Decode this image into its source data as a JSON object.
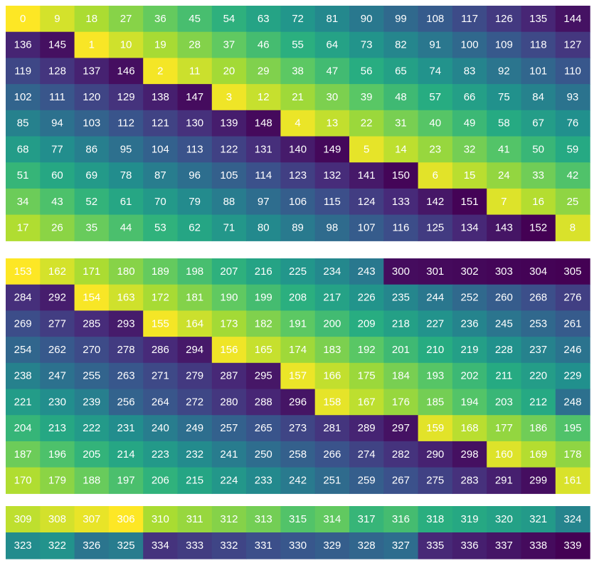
{
  "chart_data": [
    {
      "type": "heatmap",
      "title": "",
      "xlabel": "",
      "ylabel": "",
      "colormap": "viridis",
      "grid": false,
      "legend": "none",
      "values": [
        [
          0,
          9,
          18,
          27,
          36,
          45,
          54,
          63,
          72,
          81,
          90,
          99,
          108,
          117,
          126,
          135,
          144
        ],
        [
          136,
          145,
          1,
          10,
          19,
          28,
          37,
          46,
          55,
          64,
          73,
          82,
          91,
          100,
          109,
          118,
          127
        ],
        [
          119,
          128,
          137,
          146,
          2,
          11,
          20,
          29,
          38,
          47,
          56,
          65,
          74,
          83,
          92,
          101,
          110
        ],
        [
          102,
          111,
          120,
          129,
          138,
          147,
          3,
          12,
          21,
          30,
          39,
          48,
          57,
          66,
          75,
          84,
          93
        ],
        [
          85,
          94,
          103,
          112,
          121,
          130,
          139,
          148,
          4,
          13,
          22,
          31,
          40,
          49,
          58,
          67,
          76
        ],
        [
          68,
          77,
          86,
          95,
          104,
          113,
          122,
          131,
          140,
          149,
          5,
          14,
          23,
          32,
          41,
          50,
          59
        ],
        [
          51,
          60,
          69,
          78,
          87,
          96,
          105,
          114,
          123,
          132,
          141,
          150,
          6,
          15,
          24,
          33,
          42
        ],
        [
          34,
          43,
          52,
          61,
          70,
          79,
          88,
          97,
          106,
          115,
          124,
          133,
          142,
          151,
          7,
          16,
          25
        ],
        [
          17,
          26,
          35,
          44,
          53,
          62,
          71,
          80,
          89,
          98,
          107,
          116,
          125,
          134,
          143,
          152,
          8
        ]
      ]
    },
    {
      "type": "heatmap",
      "title": "",
      "xlabel": "",
      "ylabel": "",
      "colormap": "viridis",
      "grid": false,
      "legend": "none",
      "values": [
        [
          153,
          162,
          171,
          180,
          189,
          198,
          207,
          216,
          225,
          234,
          243,
          300,
          301,
          302,
          303,
          304,
          305
        ],
        [
          284,
          292,
          154,
          163,
          172,
          181,
          190,
          199,
          208,
          217,
          226,
          235,
          244,
          252,
          260,
          268,
          276
        ],
        [
          269,
          277,
          285,
          293,
          155,
          164,
          173,
          182,
          191,
          200,
          209,
          218,
          227,
          236,
          245,
          253,
          261
        ],
        [
          254,
          262,
          270,
          278,
          286,
          294,
          156,
          165,
          174,
          183,
          192,
          201,
          210,
          219,
          228,
          237,
          246
        ],
        [
          238,
          247,
          255,
          263,
          271,
          279,
          287,
          295,
          157,
          166,
          175,
          184,
          193,
          202,
          211,
          220,
          229
        ],
        [
          221,
          230,
          239,
          256,
          264,
          272,
          280,
          288,
          296,
          158,
          167,
          176,
          185,
          194,
          203,
          212,
          248
        ],
        [
          204,
          213,
          222,
          231,
          240,
          249,
          257,
          265,
          273,
          281,
          289,
          297,
          159,
          168,
          177,
          186,
          195
        ],
        [
          187,
          196,
          205,
          214,
          223,
          232,
          241,
          250,
          258,
          266,
          274,
          282,
          290,
          298,
          160,
          169,
          178
        ],
        [
          170,
          179,
          188,
          197,
          206,
          215,
          224,
          233,
          242,
          251,
          259,
          267,
          275,
          283,
          291,
          299,
          161
        ]
      ]
    },
    {
      "type": "heatmap",
      "title": "",
      "xlabel": "",
      "ylabel": "",
      "colormap": "viridis",
      "grid": false,
      "legend": "none",
      "values": [
        [
          309,
          308,
          307,
          306,
          310,
          311,
          312,
          313,
          315,
          314,
          317,
          316,
          318,
          319,
          320,
          321,
          324
        ],
        [
          323,
          322,
          326,
          325,
          334,
          333,
          332,
          331,
          330,
          329,
          328,
          327,
          335,
          336,
          337,
          338,
          339
        ]
      ]
    }
  ]
}
